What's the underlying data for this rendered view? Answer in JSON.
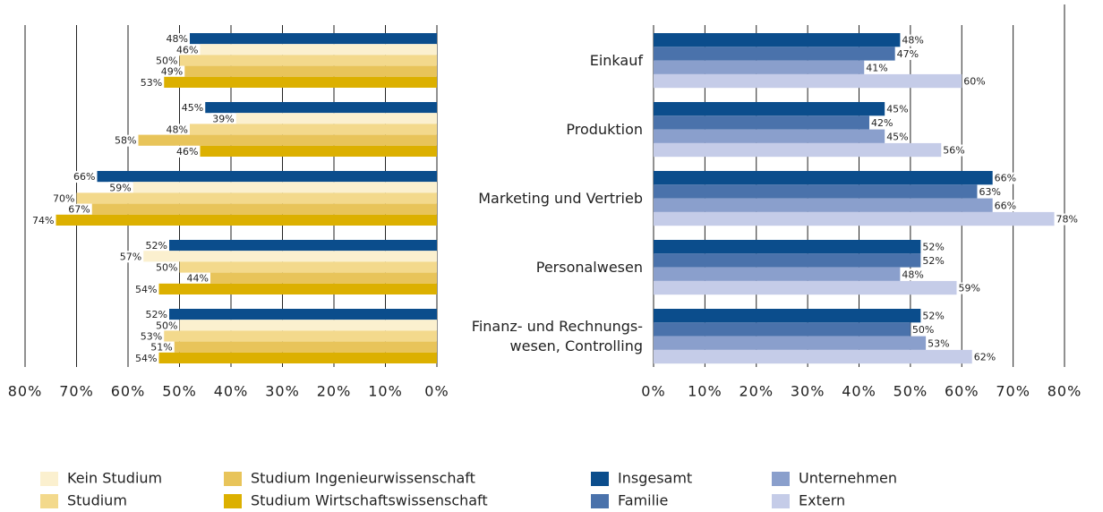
{
  "chart_data": [
    {
      "type": "barh",
      "xlim": [
        80,
        0
      ],
      "xticks": [
        {
          "value": 80,
          "label": "80%"
        },
        {
          "value": 70,
          "label": "70%"
        },
        {
          "value": 60,
          "label": "60%"
        },
        {
          "value": 50,
          "label": "50%"
        },
        {
          "value": 40,
          "label": "40%"
        },
        {
          "value": 30,
          "label": "30%"
        },
        {
          "value": 20,
          "label": "20%"
        },
        {
          "value": 10,
          "label": "10%"
        },
        {
          "value": 0,
          "label": "0%"
        }
      ],
      "grid": true,
      "series": [
        {
          "color": "#0b4d8c",
          "values": [
            48,
            45,
            66,
            52,
            52
          ],
          "value_labels": [
            "48%",
            "45%",
            "66%",
            "52%",
            "52%"
          ]
        },
        {
          "name": "Kein Studium",
          "color": "#fbf0cf",
          "values": [
            46,
            39,
            59,
            57,
            50
          ],
          "value_labels": [
            "46%",
            "39%",
            "59%",
            "57%",
            "50%"
          ]
        },
        {
          "name": "Studium",
          "color": "#f3d98c",
          "values": [
            50,
            48,
            70,
            50,
            53
          ],
          "value_labels": [
            "50%",
            "48%",
            "70%",
            "50%",
            "53%"
          ]
        },
        {
          "name": "Studium Ingenieurwissenschaft",
          "color": "#e8c45a",
          "values": [
            49,
            58,
            67,
            44,
            51
          ],
          "value_labels": [
            "49%",
            "58%",
            "67%",
            "44%",
            "51%"
          ]
        },
        {
          "name": "Studium Wirtschaftswissenschaft",
          "color": "#dcb000",
          "values": [
            53,
            46,
            74,
            54,
            54
          ],
          "value_labels": [
            "53%",
            "46%",
            "74%",
            "54%",
            "54%"
          ]
        }
      ]
    },
    {
      "type": "barh",
      "categories": [
        "Einkauf",
        "Produktion",
        "Marketing und Vertrieb",
        "Personalwesen",
        "Finanz- und Rechnungs-\nwesen, Controlling"
      ],
      "xlim": [
        0,
        80
      ],
      "xticks": [
        {
          "value": 0,
          "label": "0%"
        },
        {
          "value": 10,
          "label": "10%"
        },
        {
          "value": 20,
          "label": "20%"
        },
        {
          "value": 30,
          "label": "30%"
        },
        {
          "value": 40,
          "label": "40%"
        },
        {
          "value": 50,
          "label": "50%"
        },
        {
          "value": 60,
          "label": "60%"
        },
        {
          "value": 70,
          "label": "70%"
        },
        {
          "value": 80,
          "label": "80%"
        }
      ],
      "grid": true,
      "series": [
        {
          "name": "Insgesamt",
          "color": "#0b4d8c",
          "values": [
            48,
            45,
            66,
            52,
            52
          ],
          "value_labels": [
            "48%",
            "45%",
            "66%",
            "52%",
            "52%"
          ]
        },
        {
          "name": "Familie",
          "color": "#4a72ab",
          "values": [
            47,
            42,
            63,
            52,
            50
          ],
          "value_labels": [
            "47%",
            "42%",
            "63%",
            "52%",
            "50%"
          ]
        },
        {
          "name": "Unternehmen",
          "color": "#8a9fcc",
          "values": [
            41,
            45,
            66,
            48,
            53
          ],
          "value_labels": [
            "41%",
            "45%",
            "66%",
            "48%",
            "53%"
          ]
        },
        {
          "name": "Extern",
          "color": "#c5cce8",
          "values": [
            60,
            56,
            78,
            59,
            62
          ],
          "value_labels": [
            "60%",
            "56%",
            "78%",
            "59%",
            "62%"
          ]
        }
      ]
    }
  ]
}
